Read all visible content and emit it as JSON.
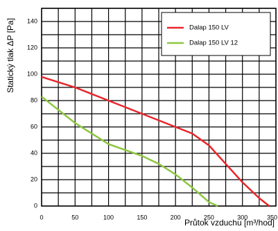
{
  "chart_data": {
    "type": "line",
    "x_label": "Průtok vzduchu [m³/hod]",
    "y_label": "Statický tlak  ΔP [Pa]",
    "xlim": [
      0,
      350
    ],
    "ylim": [
      0,
      150
    ],
    "xticks": [
      0,
      50,
      100,
      150,
      200,
      250,
      300,
      350
    ],
    "yticks": [
      0,
      20,
      40,
      60,
      80,
      100,
      120,
      140
    ],
    "xticks_minor": [
      25,
      75,
      125,
      175,
      225,
      275,
      325
    ],
    "yticks_minor": [
      10,
      30,
      50,
      70,
      90,
      110,
      130,
      150
    ],
    "grid": true,
    "legend": "upper right",
    "series": [
      {
        "name": "Dalap 150 LV",
        "color": "#e8262a",
        "x": [
          0,
          50,
          100,
          150,
          200,
          225,
          250,
          275,
          300,
          325,
          340
        ],
        "values": [
          98,
          90,
          80,
          70,
          60,
          55,
          46,
          32,
          18,
          6,
          0
        ]
      },
      {
        "name": "Dalap 150 LV 12",
        "color": "#8dc63f",
        "x": [
          0,
          50,
          100,
          150,
          175,
          200,
          225,
          250,
          263
        ],
        "values": [
          83,
          63,
          47,
          38,
          32,
          24,
          14,
          3,
          0
        ]
      }
    ]
  }
}
